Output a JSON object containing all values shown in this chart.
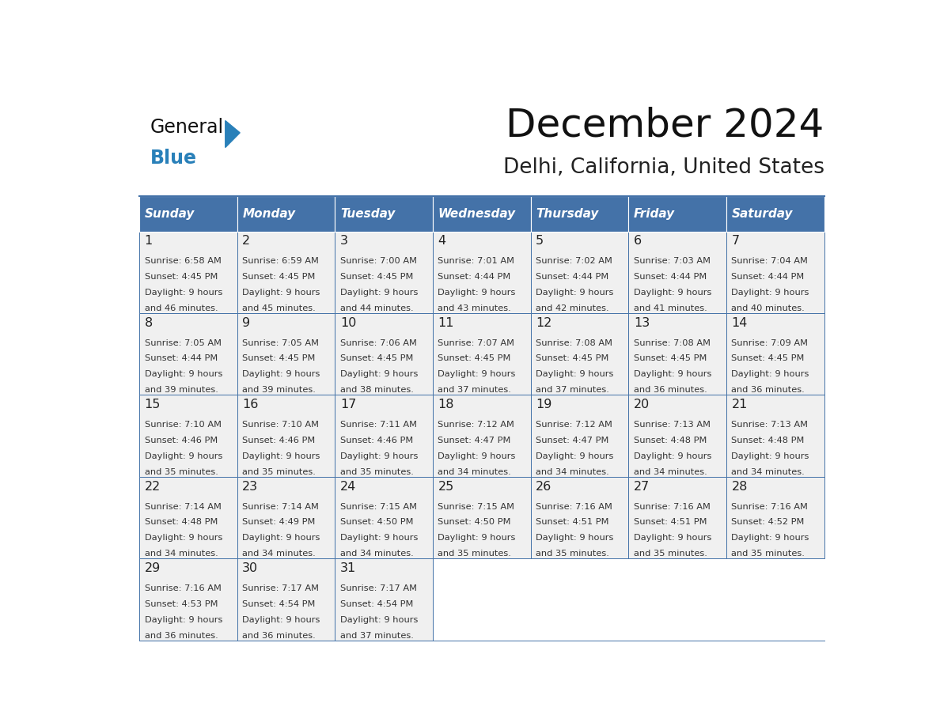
{
  "title": "December 2024",
  "subtitle": "Delhi, California, United States",
  "header_color": "#4472a8",
  "header_text_color": "#ffffff",
  "cell_bg_light": "#f0f0f0",
  "border_color": "#4472a8",
  "day_names": [
    "Sunday",
    "Monday",
    "Tuesday",
    "Wednesday",
    "Thursday",
    "Friday",
    "Saturday"
  ],
  "days": [
    {
      "day": 1,
      "col": 0,
      "row": 0,
      "sunrise": "6:58 AM",
      "sunset": "4:45 PM",
      "daylight": "9 hours and 46 minutes."
    },
    {
      "day": 2,
      "col": 1,
      "row": 0,
      "sunrise": "6:59 AM",
      "sunset": "4:45 PM",
      "daylight": "9 hours and 45 minutes."
    },
    {
      "day": 3,
      "col": 2,
      "row": 0,
      "sunrise": "7:00 AM",
      "sunset": "4:45 PM",
      "daylight": "9 hours and 44 minutes."
    },
    {
      "day": 4,
      "col": 3,
      "row": 0,
      "sunrise": "7:01 AM",
      "sunset": "4:44 PM",
      "daylight": "9 hours and 43 minutes."
    },
    {
      "day": 5,
      "col": 4,
      "row": 0,
      "sunrise": "7:02 AM",
      "sunset": "4:44 PM",
      "daylight": "9 hours and 42 minutes."
    },
    {
      "day": 6,
      "col": 5,
      "row": 0,
      "sunrise": "7:03 AM",
      "sunset": "4:44 PM",
      "daylight": "9 hours and 41 minutes."
    },
    {
      "day": 7,
      "col": 6,
      "row": 0,
      "sunrise": "7:04 AM",
      "sunset": "4:44 PM",
      "daylight": "9 hours and 40 minutes."
    },
    {
      "day": 8,
      "col": 0,
      "row": 1,
      "sunrise": "7:05 AM",
      "sunset": "4:44 PM",
      "daylight": "9 hours and 39 minutes."
    },
    {
      "day": 9,
      "col": 1,
      "row": 1,
      "sunrise": "7:05 AM",
      "sunset": "4:45 PM",
      "daylight": "9 hours and 39 minutes."
    },
    {
      "day": 10,
      "col": 2,
      "row": 1,
      "sunrise": "7:06 AM",
      "sunset": "4:45 PM",
      "daylight": "9 hours and 38 minutes."
    },
    {
      "day": 11,
      "col": 3,
      "row": 1,
      "sunrise": "7:07 AM",
      "sunset": "4:45 PM",
      "daylight": "9 hours and 37 minutes."
    },
    {
      "day": 12,
      "col": 4,
      "row": 1,
      "sunrise": "7:08 AM",
      "sunset": "4:45 PM",
      "daylight": "9 hours and 37 minutes."
    },
    {
      "day": 13,
      "col": 5,
      "row": 1,
      "sunrise": "7:08 AM",
      "sunset": "4:45 PM",
      "daylight": "9 hours and 36 minutes."
    },
    {
      "day": 14,
      "col": 6,
      "row": 1,
      "sunrise": "7:09 AM",
      "sunset": "4:45 PM",
      "daylight": "9 hours and 36 minutes."
    },
    {
      "day": 15,
      "col": 0,
      "row": 2,
      "sunrise": "7:10 AM",
      "sunset": "4:46 PM",
      "daylight": "9 hours and 35 minutes."
    },
    {
      "day": 16,
      "col": 1,
      "row": 2,
      "sunrise": "7:10 AM",
      "sunset": "4:46 PM",
      "daylight": "9 hours and 35 minutes."
    },
    {
      "day": 17,
      "col": 2,
      "row": 2,
      "sunrise": "7:11 AM",
      "sunset": "4:46 PM",
      "daylight": "9 hours and 35 minutes."
    },
    {
      "day": 18,
      "col": 3,
      "row": 2,
      "sunrise": "7:12 AM",
      "sunset": "4:47 PM",
      "daylight": "9 hours and 34 minutes."
    },
    {
      "day": 19,
      "col": 4,
      "row": 2,
      "sunrise": "7:12 AM",
      "sunset": "4:47 PM",
      "daylight": "9 hours and 34 minutes."
    },
    {
      "day": 20,
      "col": 5,
      "row": 2,
      "sunrise": "7:13 AM",
      "sunset": "4:48 PM",
      "daylight": "9 hours and 34 minutes."
    },
    {
      "day": 21,
      "col": 6,
      "row": 2,
      "sunrise": "7:13 AM",
      "sunset": "4:48 PM",
      "daylight": "9 hours and 34 minutes."
    },
    {
      "day": 22,
      "col": 0,
      "row": 3,
      "sunrise": "7:14 AM",
      "sunset": "4:48 PM",
      "daylight": "9 hours and 34 minutes."
    },
    {
      "day": 23,
      "col": 1,
      "row": 3,
      "sunrise": "7:14 AM",
      "sunset": "4:49 PM",
      "daylight": "9 hours and 34 minutes."
    },
    {
      "day": 24,
      "col": 2,
      "row": 3,
      "sunrise": "7:15 AM",
      "sunset": "4:50 PM",
      "daylight": "9 hours and 34 minutes."
    },
    {
      "day": 25,
      "col": 3,
      "row": 3,
      "sunrise": "7:15 AM",
      "sunset": "4:50 PM",
      "daylight": "9 hours and 35 minutes."
    },
    {
      "day": 26,
      "col": 4,
      "row": 3,
      "sunrise": "7:16 AM",
      "sunset": "4:51 PM",
      "daylight": "9 hours and 35 minutes."
    },
    {
      "day": 27,
      "col": 5,
      "row": 3,
      "sunrise": "7:16 AM",
      "sunset": "4:51 PM",
      "daylight": "9 hours and 35 minutes."
    },
    {
      "day": 28,
      "col": 6,
      "row": 3,
      "sunrise": "7:16 AM",
      "sunset": "4:52 PM",
      "daylight": "9 hours and 35 minutes."
    },
    {
      "day": 29,
      "col": 0,
      "row": 4,
      "sunrise": "7:16 AM",
      "sunset": "4:53 PM",
      "daylight": "9 hours and 36 minutes."
    },
    {
      "day": 30,
      "col": 1,
      "row": 4,
      "sunrise": "7:17 AM",
      "sunset": "4:54 PM",
      "daylight": "9 hours and 36 minutes."
    },
    {
      "day": 31,
      "col": 2,
      "row": 4,
      "sunrise": "7:17 AM",
      "sunset": "4:54 PM",
      "daylight": "9 hours and 37 minutes."
    }
  ],
  "num_rows": 5
}
